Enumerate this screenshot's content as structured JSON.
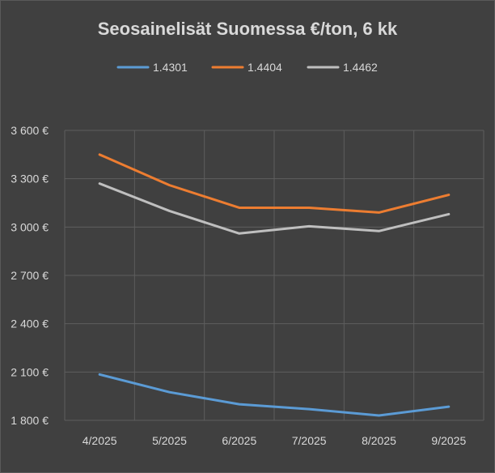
{
  "chart_data": {
    "type": "line",
    "title": "Seosainelisät Suomessa €/ton, 6 kk",
    "xlabel": "",
    "ylabel": "",
    "categories": [
      "4/2025",
      "5/2025",
      "6/2025",
      "7/2025",
      "8/2025",
      "9/2025"
    ],
    "ylim": [
      1800,
      3600
    ],
    "yticks": [
      1800,
      2100,
      2400,
      2700,
      3000,
      3300,
      3600
    ],
    "ytick_labels": [
      "1 800 €",
      "2 100 €",
      "2 400 €",
      "2 700 €",
      "3 000 €",
      "3 300 €",
      "3 600 €"
    ],
    "grid": true,
    "legend_position": "top",
    "series": [
      {
        "name": "1.4301",
        "color": "#5b9bd5",
        "values": [
          2085,
          1975,
          1900,
          1870,
          1830,
          1885
        ]
      },
      {
        "name": "1.4404",
        "color": "#ed7d31",
        "values": [
          3450,
          3260,
          3120,
          3120,
          3090,
          3200
        ]
      },
      {
        "name": "1.4462",
        "color": "#bfbfbf",
        "values": [
          3270,
          3100,
          2960,
          3005,
          2975,
          3080
        ]
      }
    ]
  },
  "colors": {
    "background": "#404040",
    "grid": "#5e5e5e",
    "text": "#d9d9d9"
  }
}
